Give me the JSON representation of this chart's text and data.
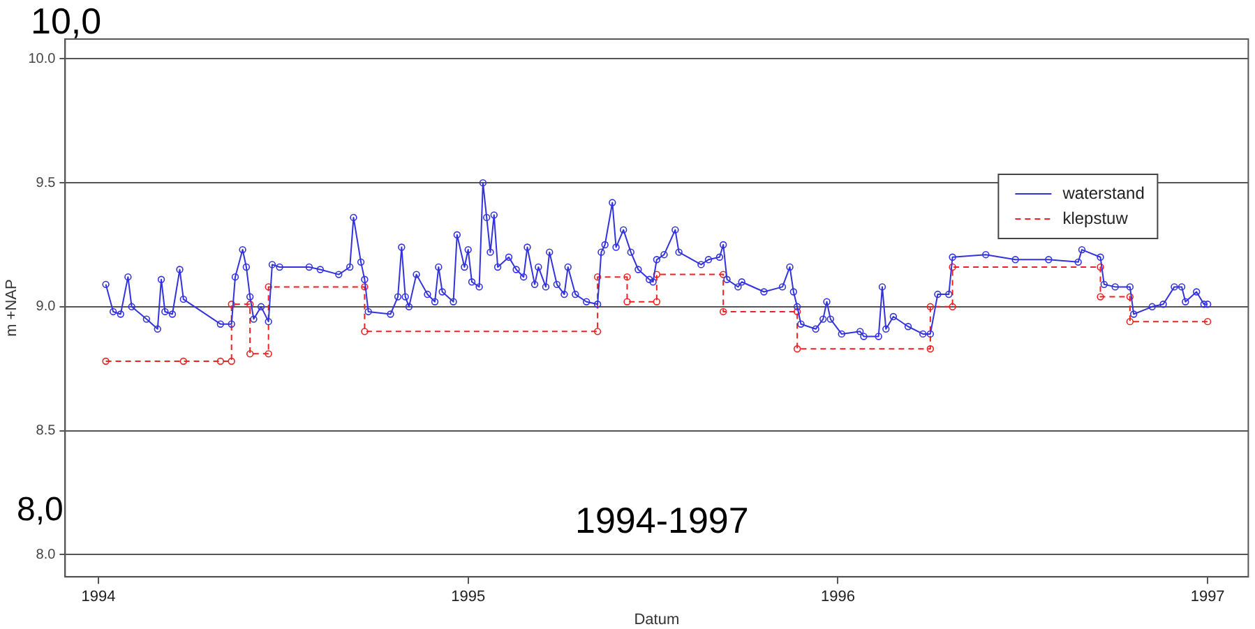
{
  "chart_data": {
    "type": "line",
    "xlabel": "Datum",
    "ylabel": "m +NAP",
    "annotations": [
      "10,0",
      "8,0",
      "1994-1997"
    ],
    "xlim": [
      1993.91,
      1997.11
    ],
    "xticks": [
      1994,
      1995,
      1996,
      1997
    ],
    "ylim": [
      7.91,
      10.08
    ],
    "yticks": [
      {
        "value": 8,
        "label": "8.0"
      },
      {
        "value": 8.5,
        "label": "8.5"
      },
      {
        "value": 9,
        "label": "9.0"
      },
      {
        "value": 9.5,
        "label": "9.5"
      },
      {
        "value": 10,
        "label": "10.0"
      }
    ],
    "grid": "y",
    "legend": "top right",
    "marker": "circle",
    "series": [
      {
        "name": "waterstand",
        "color": "#3333dd",
        "line_style": "solid",
        "x": [
          1994.02,
          1994.04,
          1994.06,
          1994.08,
          1994.09,
          1994.13,
          1994.16,
          1994.17,
          1994.18,
          1994.2,
          1994.22,
          1994.23,
          1994.33,
          1994.36,
          1994.37,
          1994.39,
          1994.4,
          1994.41,
          1994.42,
          1994.44,
          1994.46,
          1994.47,
          1994.49,
          1994.57,
          1994.6,
          1994.65,
          1994.68,
          1994.69,
          1994.71,
          1994.72,
          1994.73,
          1994.79,
          1994.81,
          1994.82,
          1994.83,
          1994.84,
          1994.86,
          1994.89,
          1994.91,
          1994.92,
          1994.93,
          1994.96,
          1994.97,
          1994.99,
          1995.0,
          1995.01,
          1995.03,
          1995.04,
          1995.05,
          1995.06,
          1995.07,
          1995.08,
          1995.11,
          1995.13,
          1995.15,
          1995.16,
          1995.18,
          1995.19,
          1995.21,
          1995.22,
          1995.24,
          1995.26,
          1995.27,
          1995.29,
          1995.32,
          1995.35,
          1995.36,
          1995.37,
          1995.39,
          1995.4,
          1995.42,
          1995.44,
          1995.46,
          1995.49,
          1995.5,
          1995.51,
          1995.53,
          1995.56,
          1995.57,
          1995.63,
          1995.65,
          1995.68,
          1995.69,
          1995.7,
          1995.73,
          1995.74,
          1995.8,
          1995.85,
          1995.87,
          1995.88,
          1995.89,
          1995.9,
          1995.94,
          1995.96,
          1995.97,
          1995.98,
          1996.01,
          1996.06,
          1996.07,
          1996.11,
          1996.12,
          1996.13,
          1996.15,
          1996.19,
          1996.23,
          1996.25,
          1996.27,
          1996.3,
          1996.31,
          1996.4,
          1996.48,
          1996.57,
          1996.65,
          1996.66,
          1996.71,
          1996.72,
          1996.75,
          1996.79,
          1996.8,
          1996.85,
          1996.88,
          1996.91,
          1996.93,
          1996.94,
          1996.97,
          1996.99,
          1997.0
        ],
        "values": [
          9.09,
          8.98,
          8.97,
          9.12,
          9.0,
          8.95,
          8.91,
          9.11,
          8.98,
          8.97,
          9.15,
          9.03,
          8.93,
          8.93,
          9.12,
          9.23,
          9.16,
          9.04,
          8.95,
          9.0,
          8.94,
          9.17,
          9.16,
          9.16,
          9.15,
          9.13,
          9.16,
          9.36,
          9.18,
          9.11,
          8.98,
          8.97,
          9.04,
          9.24,
          9.04,
          9.0,
          9.13,
          9.05,
          9.02,
          9.16,
          9.06,
          9.02,
          9.29,
          9.16,
          9.23,
          9.1,
          9.08,
          9.5,
          9.36,
          9.22,
          9.37,
          9.16,
          9.2,
          9.15,
          9.12,
          9.24,
          9.09,
          9.16,
          9.08,
          9.22,
          9.09,
          9.05,
          9.16,
          9.05,
          9.02,
          9.01,
          9.22,
          9.25,
          9.42,
          9.24,
          9.31,
          9.22,
          9.15,
          9.11,
          9.1,
          9.19,
          9.21,
          9.31,
          9.22,
          9.17,
          9.19,
          9.2,
          9.25,
          9.11,
          9.08,
          9.1,
          9.06,
          9.08,
          9.16,
          9.06,
          9.0,
          8.93,
          8.91,
          8.95,
          9.02,
          8.95,
          8.89,
          8.9,
          8.88,
          8.88,
          9.08,
          8.91,
          8.96,
          8.92,
          8.89,
          8.89,
          9.05,
          9.05,
          9.2,
          9.21,
          9.19,
          9.19,
          9.18,
          9.23,
          9.2,
          9.09,
          9.08,
          9.08,
          8.97,
          9.0,
          9.01,
          9.08,
          9.08,
          9.02,
          9.06,
          9.01,
          9.01
        ]
      },
      {
        "name": "klepstuw",
        "color": "#ee2222",
        "line_style": "dashed",
        "x": [
          1994.02,
          1994.23,
          1994.33,
          1994.36,
          1994.36,
          1994.41,
          1994.41,
          1994.46,
          1994.46,
          1994.72,
          1994.72,
          1995.35,
          1995.35,
          1995.43,
          1995.43,
          1995.51,
          1995.51,
          1995.69,
          1995.69,
          1995.89,
          1995.89,
          1996.25,
          1996.25,
          1996.31,
          1996.31,
          1996.71,
          1996.71,
          1996.79,
          1996.79,
          1997.0
        ],
        "values": [
          8.78,
          8.78,
          8.78,
          8.78,
          9.01,
          9.01,
          8.81,
          8.81,
          9.08,
          9.08,
          8.9,
          8.9,
          9.12,
          9.12,
          9.02,
          9.02,
          9.13,
          9.13,
          8.98,
          8.98,
          8.83,
          8.83,
          9.0,
          9.0,
          9.16,
          9.16,
          9.04,
          9.04,
          8.94,
          8.94
        ]
      }
    ]
  }
}
